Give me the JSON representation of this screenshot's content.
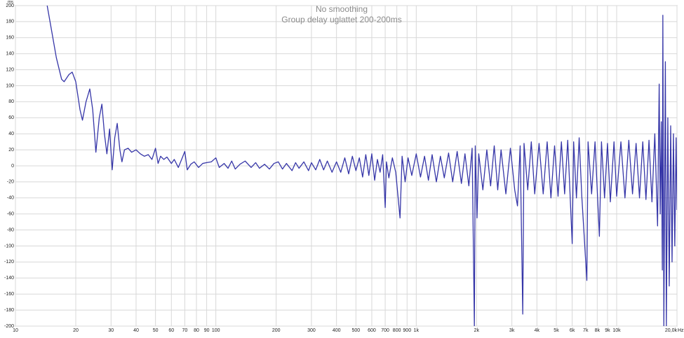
{
  "chart_data": {
    "type": "line",
    "title": "No smoothing",
    "subtitle": "Group delay uglattet 200-200ms",
    "x_unit": "Hz",
    "y_unit": "ms",
    "log_x": true,
    "grid": true,
    "color": "#3636a8",
    "xlim": [
      10,
      20000
    ],
    "ylim": [
      -200,
      200
    ],
    "xticks": [
      10,
      20,
      30,
      40,
      50,
      60,
      70,
      80,
      90,
      100,
      200,
      300,
      400,
      500,
      600,
      700,
      800,
      900,
      {
        "value": 1000,
        "label": "1k"
      },
      {
        "value": 2000,
        "label": "2k"
      },
      {
        "value": 3000,
        "label": "3k"
      },
      {
        "value": 4000,
        "label": "4k"
      },
      {
        "value": 5000,
        "label": "5k"
      },
      {
        "value": 6000,
        "label": "6k"
      },
      {
        "value": 7000,
        "label": "7k"
      },
      {
        "value": 8000,
        "label": "8k"
      },
      {
        "value": 9000,
        "label": "9k"
      },
      {
        "value": 10000,
        "label": "10k"
      },
      {
        "value": 20000,
        "label": "20,0k"
      }
    ],
    "yticks": [
      -200,
      -180,
      -160,
      -140,
      -120,
      -100,
      -80,
      -60,
      -40,
      -20,
      0,
      20,
      40,
      60,
      80,
      100,
      120,
      140,
      160,
      180,
      200
    ],
    "x": [
      14.4,
      15,
      16,
      17,
      17.5,
      18.5,
      19.2,
      20,
      21,
      21.6,
      22.5,
      23.5,
      24.3,
      25.2,
      26.2,
      27,
      27.8,
      28.6,
      29.5,
      30.4,
      31.3,
      32.2,
      33.2,
      34,
      35,
      36.5,
      38,
      40,
      42,
      44,
      46,
      48,
      50,
      51.5,
      53,
      55,
      57,
      60,
      62,
      65,
      68,
      70,
      72,
      75,
      78,
      82,
      86,
      90,
      95,
      100,
      104,
      110,
      115,
      120,
      125,
      132,
      140,
      150,
      158,
      165,
      175,
      185,
      195,
      205,
      215,
      225,
      240,
      250,
      260,
      275,
      290,
      300,
      315,
      330,
      345,
      360,
      380,
      400,
      420,
      440,
      460,
      480,
      500,
      520,
      540,
      560,
      580,
      600,
      620,
      640,
      660,
      680,
      700,
      710,
      730,
      760,
      790,
      830,
      850,
      880,
      910,
      950,
      1000,
      1050,
      1100,
      1150,
      1200,
      1260,
      1320,
      1380,
      1450,
      1520,
      1600,
      1680,
      1750,
      1830,
      1900,
      1950,
      1970,
      2010,
      2050,
      2150,
      2250,
      2350,
      2450,
      2550,
      2650,
      2800,
      2950,
      3100,
      3200,
      3300,
      3400,
      3450,
      3600,
      3750,
      3900,
      4100,
      4300,
      4500,
      4700,
      4900,
      5100,
      5300,
      5500,
      5700,
      6000,
      6100,
      6300,
      6500,
      6700,
      7100,
      7200,
      7500,
      7800,
      8200,
      8400,
      8700,
      9000,
      9300,
      9700,
      10000,
      10500,
      11000,
      11500,
      12000,
      12500,
      13000,
      13500,
      14000,
      14500,
      15000,
      15500,
      16000,
      16300,
      16500,
      16700,
      16900,
      17000,
      17200,
      17500,
      17700,
      18000,
      18300,
      18600,
      18900,
      19200,
      19500,
      19800,
      20000
    ],
    "values": [
      200,
      175,
      135,
      108,
      105,
      114,
      117,
      105,
      70,
      57,
      80,
      96,
      70,
      17,
      60,
      77,
      40,
      15,
      46,
      -5,
      35,
      53,
      20,
      5,
      20,
      22,
      17,
      20,
      15,
      12,
      14,
      8,
      22,
      3,
      12,
      8,
      11,
      3,
      8,
      -2,
      10,
      18,
      -5,
      2,
      5,
      -2,
      3,
      4,
      5,
      10,
      -2,
      3,
      -3,
      6,
      -4,
      2,
      6,
      -2,
      4,
      -3,
      2,
      -4,
      3,
      5,
      -4,
      3,
      -6,
      4,
      -3,
      5,
      -6,
      4,
      -5,
      8,
      -5,
      6,
      -8,
      5,
      -8,
      10,
      -10,
      12,
      -6,
      10,
      -14,
      14,
      -12,
      15,
      -18,
      8,
      -8,
      14,
      -52,
      5,
      -15,
      10,
      -8,
      -65,
      12,
      -20,
      10,
      -12,
      15,
      -14,
      12,
      -18,
      14,
      -20,
      12,
      -15,
      16,
      -20,
      18,
      -22,
      15,
      -25,
      22,
      -200,
      25,
      -65,
      15,
      -30,
      20,
      -25,
      25,
      -30,
      20,
      -35,
      22,
      -30,
      -50,
      25,
      -185,
      28,
      -30,
      30,
      -35,
      28,
      -35,
      30,
      -40,
      25,
      -38,
      30,
      -35,
      32,
      -97,
      30,
      -40,
      35,
      -38,
      -143,
      30,
      -35,
      30,
      -88,
      30,
      -40,
      28,
      -45,
      30,
      -38,
      30,
      -40,
      32,
      -35,
      28,
      -40,
      30,
      -42,
      32,
      -45,
      40,
      -75,
      102,
      -60,
      55,
      -130,
      188,
      -200,
      130,
      -200,
      60,
      -150,
      50,
      -120,
      40,
      -100,
      35,
      -55
    ]
  }
}
